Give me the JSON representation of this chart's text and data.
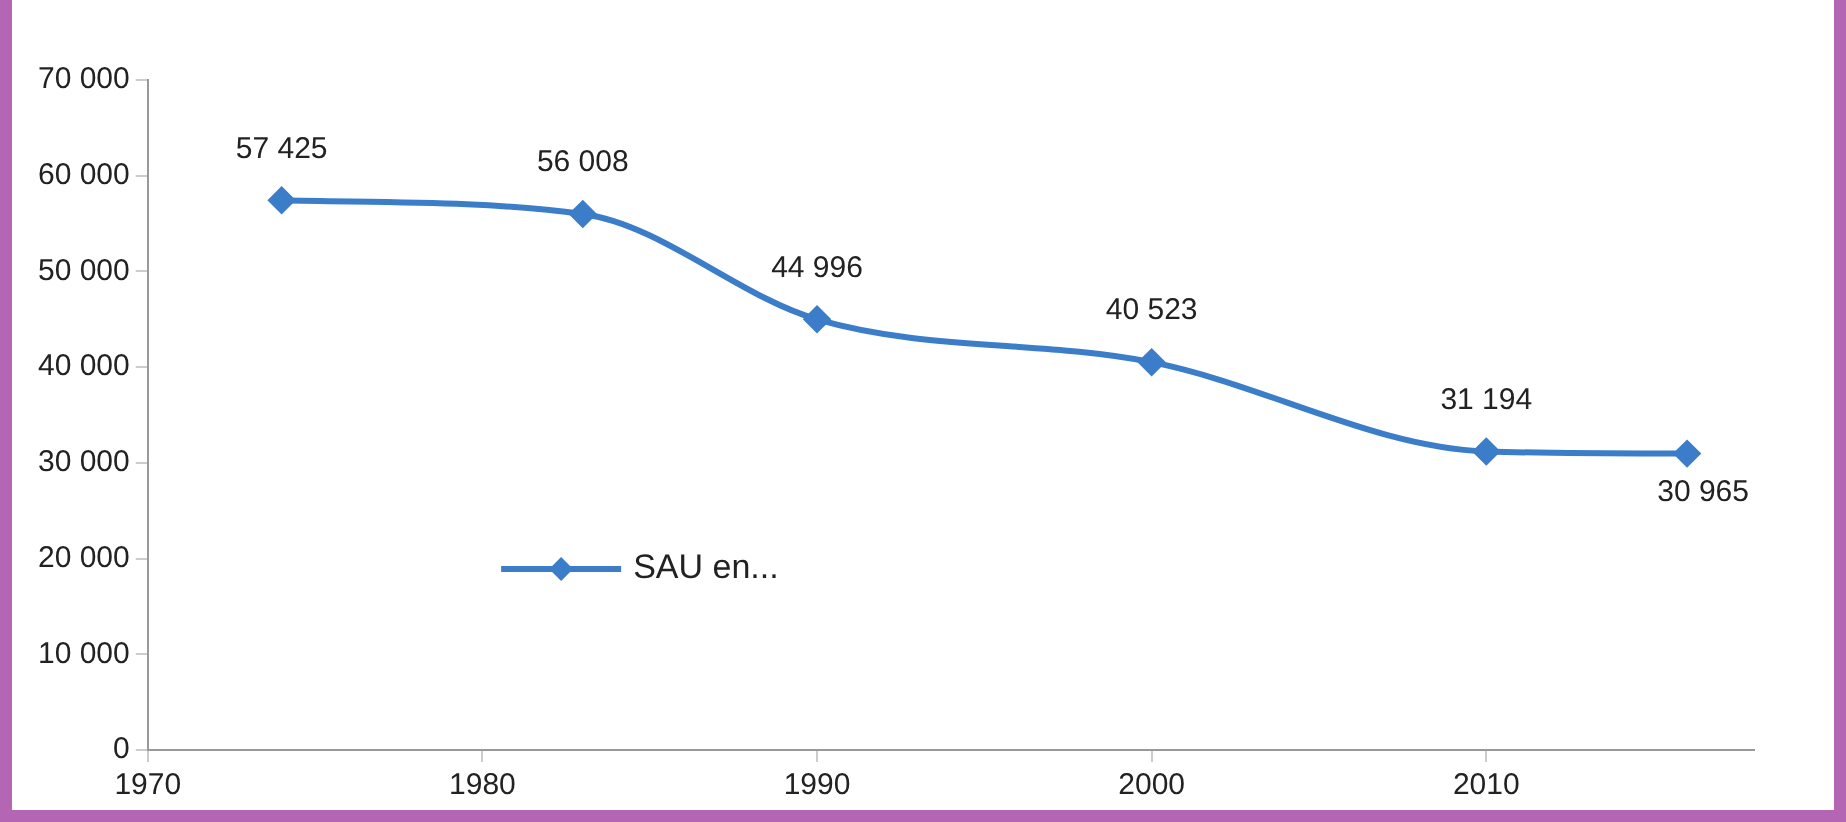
{
  "chart_data": {
    "type": "line",
    "x": [
      1974,
      1983,
      1990,
      2000,
      2010,
      2016
    ],
    "series": [
      {
        "name": "SAU en...",
        "color": "#3b7dc8",
        "values": [
          57425,
          56008,
          44996,
          40523,
          31194,
          30965
        ]
      }
    ],
    "value_labels": [
      "57 425",
      "56 008",
      "44 996",
      "40 523",
      "31 194",
      "30 965"
    ],
    "xlim": [
      1970,
      2018
    ],
    "xticks": [
      1970,
      1980,
      1990,
      2000,
      2010
    ],
    "ylim": [
      0,
      70000
    ],
    "yticks": [
      {
        "value": 0,
        "label": "0"
      },
      {
        "value": 10000,
        "label": "10 000"
      },
      {
        "value": 20000,
        "label": "20 000"
      },
      {
        "value": 30000,
        "label": "30 000"
      },
      {
        "value": 40000,
        "label": "40 000"
      },
      {
        "value": 50000,
        "label": "50 000"
      },
      {
        "value": 60000,
        "label": "60 000"
      },
      {
        "value": 70000,
        "label": "70 000"
      }
    ],
    "marker": "diamond",
    "legend": "bottom left",
    "grid": false
  }
}
